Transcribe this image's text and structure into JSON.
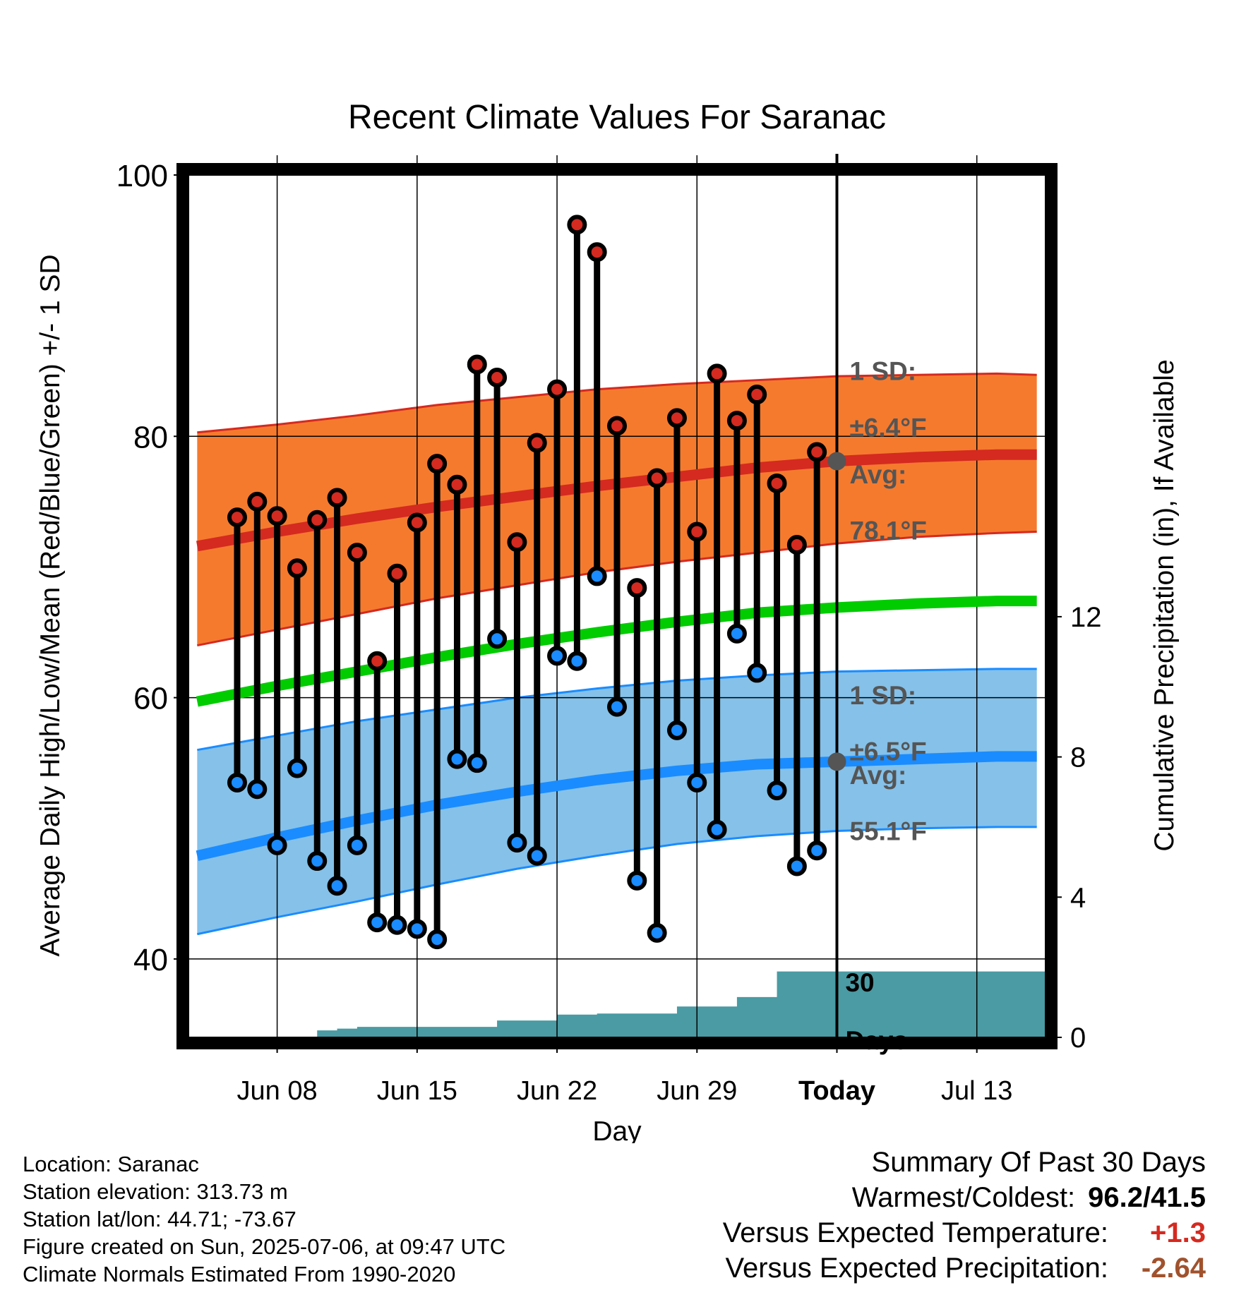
{
  "colors": {
    "high_band": "#f57a2e",
    "high_band_edge": "#d42a20",
    "high_mean_line": "#d42a20",
    "low_band": "#85c1e9",
    "low_band_edge": "#1a8cff",
    "low_mean_line": "#1a8cff",
    "mean_line": "#00cc00",
    "precip_fill": "#4a9ba3",
    "high_marker": "#d42a20",
    "low_marker": "#1a8cff",
    "today_marker": "#555555",
    "annotation_text": "#555555",
    "temp_anomaly": "#d42a20",
    "precip_anomaly": "#a0522d"
  },
  "chart_data": {
    "type": "line",
    "title": "Recent Climate Values For Saranac",
    "xlabel": "Day",
    "ylabel": "Average Daily High/Low/Mean (Red/Blue/Green) +/- 1 SD",
    "y2label": "Cumulative Precipitation (in), If Available",
    "ylim": [
      34,
      100
    ],
    "y2lim": [
      0,
      24.6
    ],
    "xlim": [
      3.6,
      46.4
    ],
    "yticks": [
      "40",
      "60",
      "80",
      "100"
    ],
    "y2ticks": [
      "0",
      "4",
      "8",
      "12"
    ],
    "x_ticks": [
      {
        "day": 8,
        "label": "Jun 08"
      },
      {
        "day": 15,
        "label": "Jun 15"
      },
      {
        "day": 22,
        "label": "Jun 22"
      },
      {
        "day": 29,
        "label": "Jun 29"
      },
      {
        "day": 36,
        "label": "Today"
      },
      {
        "day": 43,
        "label": "Jul 13"
      }
    ],
    "today_day": 36,
    "grid": true,
    "normals_x": [
      4,
      8,
      12,
      16,
      20,
      24,
      28,
      32,
      36,
      40,
      44,
      46
    ],
    "normal_high": [
      71.6,
      72.7,
      73.7,
      74.6,
      75.4,
      76.2,
      76.9,
      77.6,
      78.1,
      78.4,
      78.6,
      78.6
    ],
    "normal_high_sd_upper": [
      80.3,
      80.9,
      81.6,
      82.4,
      83.0,
      83.6,
      84.0,
      84.3,
      84.6,
      84.7,
      84.8,
      84.7
    ],
    "normal_high_sd_lower": [
      64.0,
      65.2,
      66.4,
      67.6,
      68.6,
      69.6,
      70.4,
      71.1,
      71.8,
      72.3,
      72.6,
      72.7
    ],
    "normal_mean": [
      59.7,
      60.9,
      62.0,
      63.1,
      64.1,
      65.0,
      65.8,
      66.5,
      66.9,
      67.2,
      67.4,
      67.4
    ],
    "normal_low": [
      47.9,
      49.3,
      50.6,
      51.8,
      52.8,
      53.7,
      54.4,
      54.9,
      55.1,
      55.3,
      55.5,
      55.5
    ],
    "normal_low_sd_upper": [
      56.0,
      57.1,
      58.2,
      59.1,
      60.0,
      60.7,
      61.3,
      61.7,
      62.0,
      62.1,
      62.2,
      62.2
    ],
    "normal_low_sd_lower": [
      41.9,
      43.2,
      44.4,
      45.7,
      46.9,
      47.9,
      48.8,
      49.4,
      49.8,
      50.0,
      50.1,
      50.1
    ],
    "series": [
      {
        "name": "High",
        "days": [
          6,
          7,
          8,
          9,
          10,
          11,
          12,
          13,
          14,
          15,
          16,
          17,
          18,
          19,
          20,
          21,
          22,
          23,
          24,
          25,
          26,
          27,
          28,
          29,
          30,
          31,
          32,
          33,
          34,
          35
        ],
        "values": [
          73.8,
          75.0,
          73.9,
          69.9,
          73.6,
          75.3,
          71.1,
          62.8,
          69.5,
          73.4,
          77.9,
          76.3,
          85.5,
          84.5,
          71.9,
          79.5,
          83.6,
          96.2,
          94.1,
          80.8,
          68.4,
          76.8,
          81.4,
          72.7,
          84.8,
          81.2,
          83.2,
          76.4,
          71.7,
          78.8
        ]
      },
      {
        "name": "Low",
        "days": [
          6,
          7,
          8,
          9,
          10,
          11,
          12,
          13,
          14,
          15,
          16,
          17,
          18,
          19,
          20,
          21,
          22,
          23,
          24,
          25,
          26,
          27,
          28,
          29,
          30,
          31,
          32,
          33,
          34,
          35
        ],
        "values": [
          53.5,
          53.0,
          48.7,
          54.6,
          47.5,
          45.6,
          48.7,
          42.8,
          42.6,
          42.3,
          41.5,
          55.3,
          55.0,
          64.5,
          48.9,
          47.9,
          63.2,
          62.8,
          69.3,
          59.3,
          46.0,
          42.0,
          57.5,
          53.5,
          49.9,
          64.9,
          61.9,
          52.9,
          47.1,
          48.3
        ]
      }
    ],
    "precip_days": [
      3.6,
      5,
      6,
      7,
      8,
      9,
      10,
      11,
      12,
      13,
      14,
      15,
      16,
      17,
      18,
      19,
      20,
      21,
      22,
      23,
      24,
      25,
      26,
      27,
      28,
      29,
      30,
      31,
      32,
      33,
      34,
      35,
      36,
      46.4
    ],
    "precip_cumulative": [
      0,
      0,
      0,
      0,
      0,
      0.02,
      0.2,
      0.25,
      0.3,
      0.3,
      0.3,
      0.3,
      0.3,
      0.3,
      0.3,
      0.48,
      0.48,
      0.48,
      0.65,
      0.65,
      0.68,
      0.68,
      0.68,
      0.68,
      0.88,
      0.88,
      0.88,
      1.15,
      1.15,
      1.88,
      1.88,
      1.88,
      1.88,
      1.88
    ],
    "annotations": {
      "high_sd_label": "1 SD:",
      "high_sd_value": "±6.4°F",
      "high_avg_label": "Avg:",
      "high_avg_value": "78.1°F",
      "low_sd_label": "1 SD:",
      "low_sd_value": "±6.5°F",
      "low_avg_label": "Avg:",
      "low_avg_value": "55.1°F",
      "window_label_1": "30",
      "window_label_2": "Days"
    }
  },
  "footer": {
    "location": "Location: Saranac",
    "elevation": "Station elevation: 313.73 m",
    "latlon": "Station lat/lon: 44.71; -73.67",
    "created": "Figure created on Sun, 2025-07-06, at 09:47 UTC",
    "normals": "Climate Normals Estimated From 1990-2020"
  },
  "summary": {
    "title": "Summary Of Past 30 Days",
    "warmest_coldest_label": "Warmest/Coldest:",
    "warmest_coldest_value": "96.2/41.5",
    "temp_label": "Versus Expected Temperature:",
    "temp_value": "+1.3",
    "precip_label": "Versus Expected Precipitation:",
    "precip_value": "-2.64"
  }
}
